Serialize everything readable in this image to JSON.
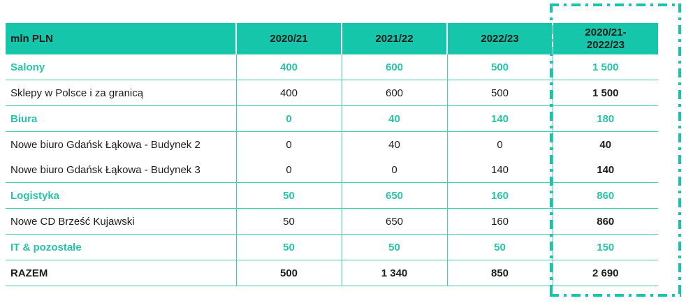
{
  "colors": {
    "header_bg": "#15c6aa",
    "accent_text": "#2bc2aa",
    "grid_line": "#43ccb6",
    "dark_text": "#1d1d1b",
    "highlight_border": "#15c6aa"
  },
  "chart_data": {
    "type": "table",
    "title": "",
    "unit_label": "mln PLN",
    "columns": [
      "mln PLN",
      "2020/21",
      "2021/22",
      "2022/23",
      "2020/21-\n2022/23"
    ],
    "rows": [
      {
        "style": "category",
        "cells": [
          "Salony",
          "400",
          "600",
          "500",
          "1 500"
        ]
      },
      {
        "style": "detail",
        "cells": [
          "Sklepy w Polsce i za granicą",
          "400",
          "600",
          "500",
          "1 500"
        ]
      },
      {
        "style": "category",
        "cells": [
          "Biura",
          "0",
          "40",
          "140",
          "180"
        ]
      },
      {
        "style": "detail",
        "cells": [
          "Nowe biuro Gdańsk Łąkowa - Budynek 2",
          "0",
          "40",
          "0",
          "40"
        ]
      },
      {
        "style": "detail",
        "cells": [
          "Nowe biuro Gdańsk Łąkowa - Budynek 3",
          "0",
          "0",
          "140",
          "140"
        ]
      },
      {
        "style": "category",
        "cells": [
          "Logistyka",
          "50",
          "650",
          "160",
          "860"
        ]
      },
      {
        "style": "detail",
        "cells": [
          "Nowe CD Brześć Kujawski",
          "50",
          "650",
          "160",
          "860"
        ]
      },
      {
        "style": "category",
        "cells": [
          "IT & pozostałe",
          "50",
          "50",
          "50",
          "150"
        ]
      },
      {
        "style": "total",
        "cells": [
          "RAZEM",
          "500",
          "1 340",
          "850",
          "2 690"
        ]
      }
    ],
    "highlight": {
      "highlighted_column": "2020/21-2022/23",
      "marker": "teal dash-dot rectangle around totals column"
    },
    "legend_position": "none",
    "grid": true
  }
}
